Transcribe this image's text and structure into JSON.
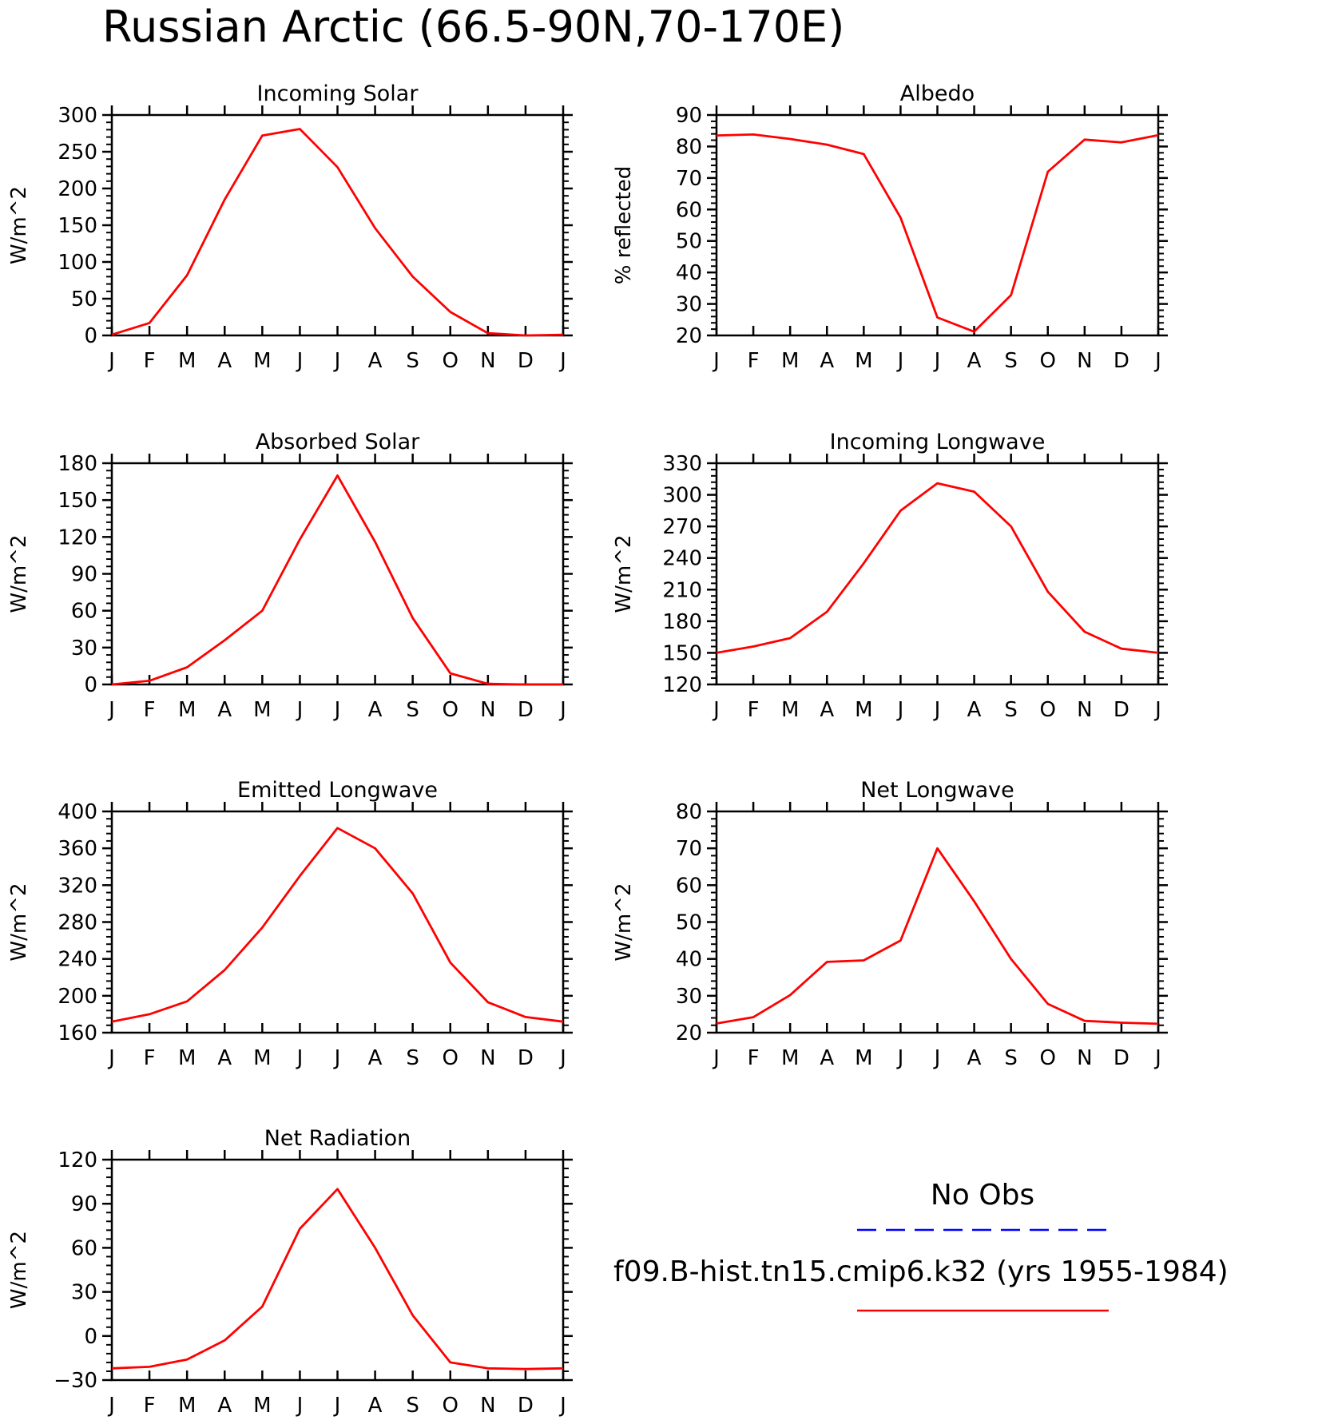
{
  "page": {
    "title": "Russian Arctic (66.5-90N,70-170E)"
  },
  "months": [
    "J",
    "F",
    "M",
    "A",
    "M",
    "J",
    "J",
    "A",
    "S",
    "O",
    "N",
    "D",
    "J"
  ],
  "legend": {
    "obs_label": "No Obs",
    "obs_color": "#0000ff",
    "model_label": "f09.B-hist.tn15.cmip6.k32 (yrs 1955-1984)",
    "model_color": "#ff0000"
  },
  "chart_data": [
    {
      "type": "line",
      "title": "Incoming Solar",
      "ylabel": "W/m^2",
      "ylim": [
        0,
        300
      ],
      "yticks": [
        0,
        50,
        100,
        150,
        200,
        250,
        300
      ],
      "series": [
        {
          "values": [
            1,
            17,
            82,
            185,
            272,
            281,
            229,
            146,
            80,
            32,
            3,
            0,
            1
          ]
        }
      ]
    },
    {
      "type": "line",
      "title": "Albedo",
      "ylabel": "% reflected",
      "ylim": [
        20,
        90
      ],
      "yticks": [
        20,
        30,
        40,
        50,
        60,
        70,
        80,
        90
      ],
      "series": [
        {
          "values": [
            83.5,
            83.8,
            82.4,
            80.6,
            77.6,
            57.4,
            25.7,
            21.2,
            32.8,
            72,
            82.2,
            81.3,
            83.6
          ]
        }
      ]
    },
    {
      "type": "line",
      "title": "Absorbed Solar",
      "ylabel": "W/m^2",
      "ylim": [
        0,
        180
      ],
      "yticks": [
        0,
        30,
        60,
        90,
        120,
        150,
        180
      ],
      "series": [
        {
          "values": [
            0,
            3,
            14,
            36,
            60,
            118,
            170,
            116,
            54,
            9,
            0.5,
            0,
            0
          ]
        }
      ]
    },
    {
      "type": "line",
      "title": "Incoming Longwave",
      "ylabel": "W/m^2",
      "ylim": [
        120,
        330
      ],
      "yticks": [
        120,
        150,
        180,
        210,
        240,
        270,
        300,
        330
      ],
      "series": [
        {
          "values": [
            150,
            156,
            164,
            189,
            235,
            285,
            311,
            303,
            270,
            208,
            170,
            154,
            150
          ]
        }
      ]
    },
    {
      "type": "line",
      "title": "Emitted Longwave",
      "ylabel": "W/m^2",
      "ylim": [
        160,
        400
      ],
      "yticks": [
        160,
        200,
        240,
        280,
        320,
        360,
        400
      ],
      "series": [
        {
          "values": [
            172,
            180,
            194,
            228,
            274,
            330,
            382,
            360,
            311,
            236,
            193,
            177,
            172
          ]
        }
      ]
    },
    {
      "type": "line",
      "title": "Net Longwave",
      "ylabel": "W/m^2",
      "ylim": [
        20,
        80
      ],
      "yticks": [
        20,
        30,
        40,
        50,
        60,
        70,
        80
      ],
      "series": [
        {
          "values": [
            22.5,
            24.2,
            30.2,
            39.2,
            39.6,
            45,
            70,
            55.6,
            40,
            27.8,
            23.2,
            22.7,
            22.4
          ]
        }
      ]
    },
    {
      "type": "line",
      "title": "Net Radiation",
      "ylabel": "W/m^2",
      "ylim": [
        -30,
        120
      ],
      "yticks": [
        -30,
        0,
        30,
        60,
        90,
        120
      ],
      "series": [
        {
          "values": [
            -22,
            -21,
            -16,
            -3,
            20,
            73,
            100,
            60,
            14,
            -18,
            -22,
            -22.5,
            -22
          ]
        }
      ]
    }
  ]
}
